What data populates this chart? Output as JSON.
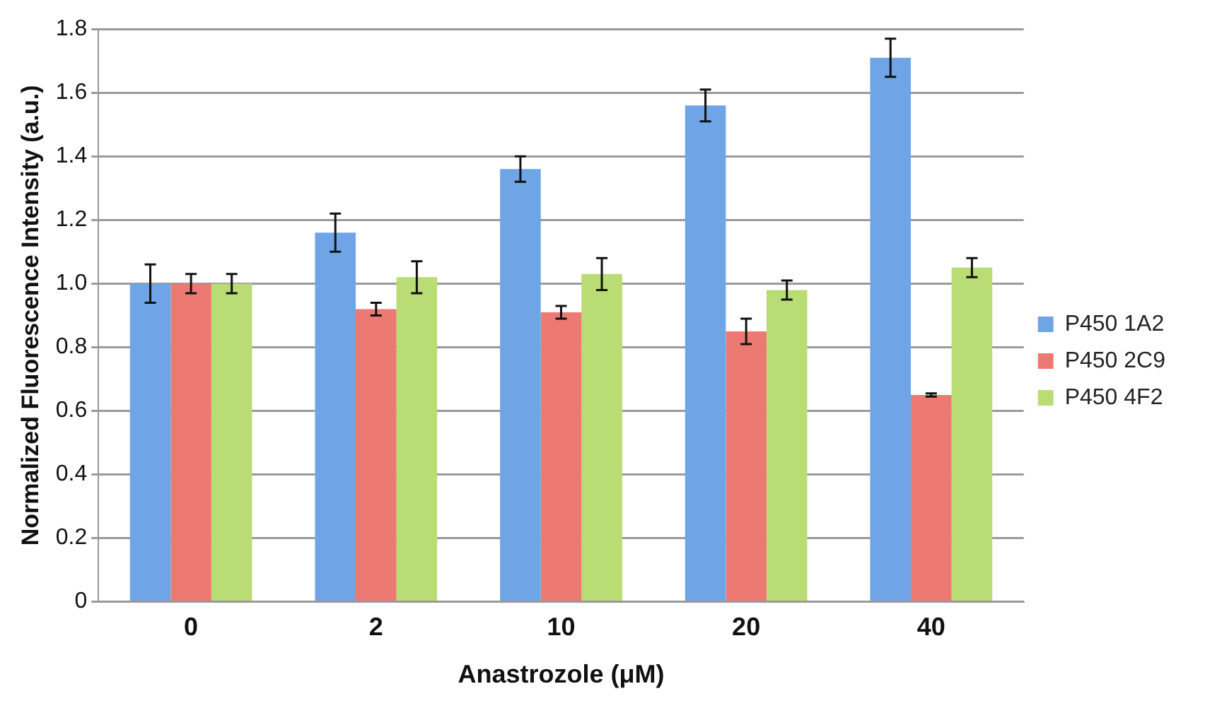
{
  "chart_data": {
    "type": "bar",
    "xlabel": "Anastrozole (μM)",
    "ylabel": "Normalized Fluorescence Intensity (a.u.)",
    "categories": [
      "0",
      "2",
      "10",
      "20",
      "40"
    ],
    "series": [
      {
        "name": "P450 1A2",
        "color": "#6fa5e6",
        "values": [
          1.0,
          1.16,
          1.36,
          1.56,
          1.71
        ],
        "errors": [
          0.06,
          0.06,
          0.04,
          0.05,
          0.06
        ]
      },
      {
        "name": "P450 2C9",
        "color": "#ec7a72",
        "values": [
          1.0,
          0.92,
          0.91,
          0.85,
          0.65
        ],
        "errors": [
          0.03,
          0.02,
          0.02,
          0.04,
          0.005
        ]
      },
      {
        "name": "P450 4F2",
        "color": "#b9dc74",
        "values": [
          1.0,
          1.02,
          1.03,
          0.98,
          1.05
        ],
        "errors": [
          0.03,
          0.05,
          0.05,
          0.03,
          0.03
        ]
      }
    ],
    "ylim": [
      0,
      1.8
    ],
    "yticks": [
      "0",
      0.2,
      0.4,
      0.6,
      0.8,
      {
        "value": 1,
        "label": "1.0"
      },
      1.2,
      1.4,
      1.6,
      1.8
    ],
    "grid": "y",
    "legend": "right"
  }
}
